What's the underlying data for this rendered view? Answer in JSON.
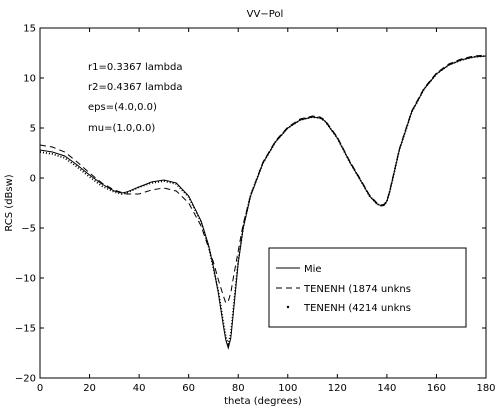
{
  "chart_data": {
    "type": "line",
    "title": "VV−Pol",
    "xlabel": "theta (degrees)",
    "ylabel": "RCS (dBsw)",
    "xlim": [
      0,
      180
    ],
    "ylim": [
      -20,
      15
    ],
    "xticks": [
      0,
      20,
      40,
      60,
      80,
      100,
      120,
      140,
      160,
      180
    ],
    "yticks": [
      -20,
      -15,
      -10,
      -5,
      0,
      5,
      10,
      15
    ],
    "grid": false,
    "legend_position": "bottom-right",
    "annotations": [
      "r1=0.3367 lambda",
      "r2=0.4367 lambda",
      "eps=(4.0,0.0)",
      "mu=(1.0,0.0)"
    ],
    "series": [
      {
        "name": "Mie",
        "style": "solid",
        "x": [
          0,
          5,
          10,
          15,
          20,
          25,
          30,
          33,
          35,
          40,
          45,
          50,
          55,
          60,
          65,
          68,
          70,
          72,
          74,
          75,
          76,
          77,
          78,
          80,
          82,
          85,
          90,
          95,
          100,
          105,
          110,
          113,
          115,
          120,
          125,
          130,
          133,
          136,
          138,
          139,
          140,
          141,
          143,
          145,
          150,
          155,
          160,
          165,
          170,
          175,
          180
        ],
        "y": [
          2.8,
          2.6,
          2.2,
          1.3,
          0.3,
          -0.6,
          -1.3,
          -1.5,
          -1.4,
          -0.9,
          -0.4,
          -0.2,
          -0.5,
          -1.8,
          -4.3,
          -6.7,
          -8.9,
          -11.5,
          -14.8,
          -16.2,
          -17.0,
          -16.0,
          -13.5,
          -8.5,
          -5.0,
          -1.8,
          1.5,
          3.6,
          5.0,
          5.8,
          6.1,
          6.0,
          5.7,
          4.0,
          1.6,
          -0.5,
          -1.8,
          -2.6,
          -2.8,
          -2.7,
          -2.3,
          -1.5,
          0.6,
          2.8,
          6.6,
          8.9,
          10.4,
          11.3,
          11.8,
          12.1,
          12.2
        ]
      },
      {
        "name": "TENENH (1874 unkns",
        "style": "dashed",
        "x": [
          0,
          5,
          10,
          15,
          20,
          25,
          30,
          35,
          40,
          45,
          50,
          55,
          60,
          65,
          70,
          72,
          74,
          75,
          76,
          77,
          78,
          80,
          82,
          85,
          90,
          95,
          100,
          105,
          110,
          113,
          115,
          120,
          125,
          130,
          133,
          136,
          138,
          139,
          140,
          141,
          143,
          145,
          150,
          155,
          160,
          165,
          170,
          175,
          180
        ],
        "y": [
          3.3,
          3.1,
          2.6,
          1.6,
          0.5,
          -0.5,
          -1.2,
          -1.6,
          -1.6,
          -1.2,
          -1.0,
          -1.3,
          -2.5,
          -4.8,
          -8.4,
          -10.2,
          -11.8,
          -12.5,
          -12.3,
          -11.5,
          -10.0,
          -7.3,
          -4.6,
          -1.7,
          1.6,
          3.7,
          5.1,
          5.9,
          6.2,
          6.1,
          5.8,
          4.1,
          1.7,
          -0.4,
          -1.7,
          -2.5,
          -2.7,
          -2.6,
          -2.2,
          -1.4,
          0.7,
          2.9,
          6.7,
          9.0,
          10.5,
          11.4,
          11.9,
          12.2,
          12.3
        ]
      },
      {
        "name": "TENENH (4214 unkns",
        "style": "dotted",
        "x": [
          0,
          5,
          10,
          15,
          20,
          25,
          30,
          33,
          35,
          40,
          45,
          50,
          55,
          60,
          65,
          68,
          70,
          72,
          74,
          75,
          76,
          77,
          78,
          80,
          82,
          85,
          90,
          95,
          100,
          105,
          110,
          113,
          115,
          120,
          125,
          130,
          133,
          136,
          138,
          139,
          140,
          141,
          143,
          145,
          150,
          155,
          160,
          165,
          170,
          175,
          180
        ],
        "y": [
          2.6,
          2.4,
          2.0,
          1.1,
          0.1,
          -0.8,
          -1.4,
          -1.6,
          -1.5,
          -0.9,
          -0.5,
          -0.3,
          -0.6,
          -1.9,
          -4.4,
          -6.8,
          -9.0,
          -11.4,
          -14.5,
          -15.9,
          -16.6,
          -15.6,
          -13.2,
          -8.3,
          -4.9,
          -1.7,
          1.5,
          3.6,
          5.0,
          5.8,
          6.1,
          6.0,
          5.7,
          4.0,
          1.6,
          -0.5,
          -1.8,
          -2.6,
          -2.8,
          -2.7,
          -2.3,
          -1.5,
          0.6,
          2.8,
          6.6,
          8.9,
          10.4,
          11.3,
          11.8,
          12.1,
          12.2
        ]
      }
    ]
  }
}
